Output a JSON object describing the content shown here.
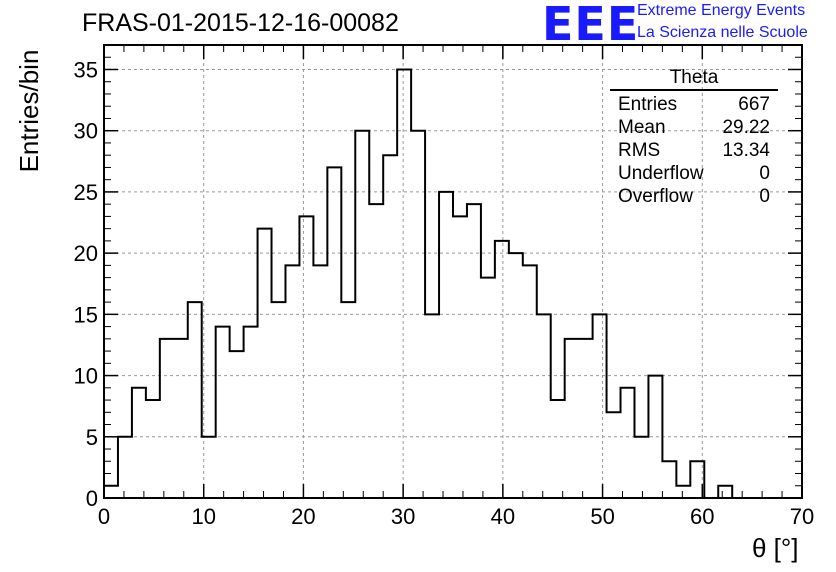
{
  "title": "FRAS-01-2015-12-16-00082",
  "logo": {
    "text": "EEE",
    "line1": "Extreme Energy Events",
    "line2": "La Scienza nelle Scuole",
    "color": "#1a1aff"
  },
  "stats": {
    "title": "Theta",
    "rows": [
      {
        "label": "Entries",
        "value": "667"
      },
      {
        "label": "Mean",
        "value": "29.22"
      },
      {
        "label": "RMS",
        "value": "13.34"
      },
      {
        "label": "Underflow",
        "value": "0"
      },
      {
        "label": "Overflow",
        "value": "0"
      }
    ]
  },
  "chart_data": {
    "type": "bar",
    "style": "step-histogram",
    "title": "FRAS-01-2015-12-16-00082",
    "xlabel": "θ [°]",
    "ylabel": "Entries/bin",
    "xlim": [
      0,
      70
    ],
    "ylim": [
      0,
      37
    ],
    "xticks": [
      0,
      10,
      20,
      30,
      40,
      50,
      60,
      70
    ],
    "yticks": [
      0,
      5,
      10,
      15,
      20,
      25,
      30,
      35
    ],
    "grid": true,
    "bin_edges_start": 0,
    "bin_width": 1.4,
    "values": [
      1,
      5,
      9,
      8,
      13,
      13,
      16,
      5,
      14,
      12,
      14,
      22,
      16,
      19,
      23,
      19,
      27,
      16,
      30,
      24,
      28,
      35,
      30,
      15,
      25,
      23,
      24,
      18,
      21,
      20,
      19,
      15,
      8,
      13,
      13,
      15,
      7,
      9,
      5,
      10,
      3,
      1,
      3,
      0,
      1,
      0,
      0,
      0,
      0,
      0
    ]
  }
}
